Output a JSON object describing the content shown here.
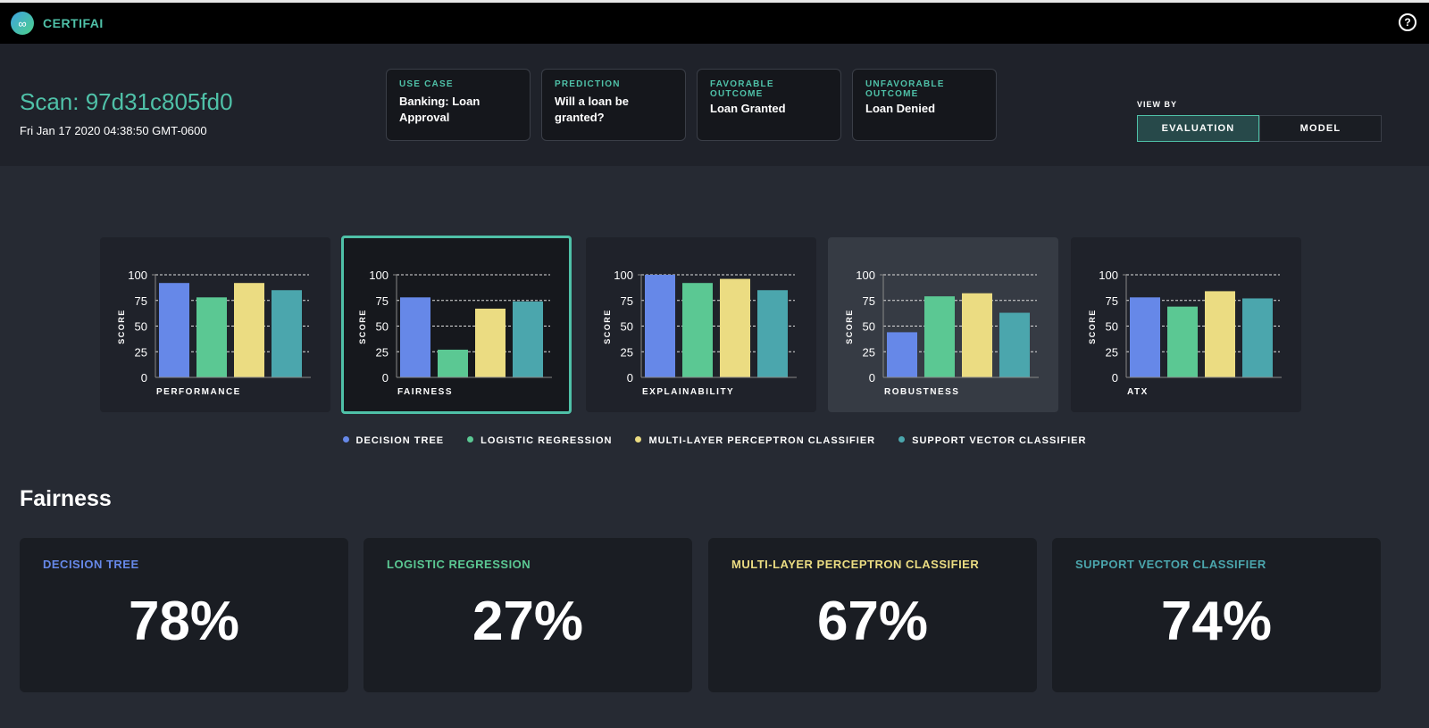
{
  "app": {
    "brand": "CERTIFAI",
    "logo_icon": "cloud-logo-icon",
    "help_icon": "?"
  },
  "scan": {
    "title": "Scan: 97d31c805fd0",
    "date": "Fri Jan 17 2020 04:38:50 GMT-0600"
  },
  "info": [
    {
      "label": "USE CASE",
      "value": "Banking: Loan Approval"
    },
    {
      "label": "PREDICTION",
      "value": "Will a loan be granted?"
    },
    {
      "label": "FAVORABLE OUTCOME",
      "value": "Loan Granted"
    },
    {
      "label": "UNFAVORABLE OUTCOME",
      "value": "Loan Denied"
    }
  ],
  "view_by": {
    "label": "VIEW BY",
    "options": [
      "EVALUATION",
      "MODEL"
    ],
    "selected": "EVALUATION"
  },
  "colors": {
    "accent": "#4fc1a8",
    "series": [
      "#6688e8",
      "#5bc893",
      "#ebdc82",
      "#4ba6ad"
    ]
  },
  "chart_data": [
    {
      "type": "bar",
      "title": "PERFORMANCE",
      "ylabel": "SCORE",
      "ylim": [
        0,
        100
      ],
      "ticks": [
        "0",
        "25",
        "50",
        "75",
        "100"
      ],
      "categories": [
        "Decision Tree",
        "Logistic Regression",
        "Multi-Layer Perceptron Classifier",
        "Support Vector Classifier"
      ],
      "values": [
        92,
        78,
        92,
        85
      ],
      "grid": true
    },
    {
      "type": "bar",
      "title": "FAIRNESS",
      "ylabel": "SCORE",
      "ylim": [
        0,
        100
      ],
      "ticks": [
        "0",
        "25",
        "50",
        "75",
        "100"
      ],
      "categories": [
        "Decision Tree",
        "Logistic Regression",
        "Multi-Layer Perceptron Classifier",
        "Support Vector Classifier"
      ],
      "values": [
        78,
        27,
        67,
        74
      ],
      "grid": true,
      "selected": true
    },
    {
      "type": "bar",
      "title": "EXPLAINABILITY",
      "ylabel": "SCORE",
      "ylim": [
        0,
        100
      ],
      "ticks": [
        "0",
        "25",
        "50",
        "75",
        "100"
      ],
      "categories": [
        "Decision Tree",
        "Logistic Regression",
        "Multi-Layer Perceptron Classifier",
        "Support Vector Classifier"
      ],
      "values": [
        100,
        92,
        96,
        85
      ],
      "grid": true
    },
    {
      "type": "bar",
      "title": "ROBUSTNESS",
      "ylabel": "SCORE",
      "ylim": [
        0,
        100
      ],
      "ticks": [
        "0",
        "25",
        "50",
        "75",
        "100"
      ],
      "categories": [
        "Decision Tree",
        "Logistic Regression",
        "Multi-Layer Perceptron Classifier",
        "Support Vector Classifier"
      ],
      "values": [
        44,
        79,
        82,
        63
      ],
      "grid": true
    },
    {
      "type": "bar",
      "title": "ATX",
      "ylabel": "SCORE",
      "ylim": [
        0,
        100
      ],
      "ticks": [
        "0",
        "25",
        "50",
        "75",
        "100"
      ],
      "categories": [
        "Decision Tree",
        "Logistic Regression",
        "Multi-Layer Perceptron Classifier",
        "Support Vector Classifier"
      ],
      "values": [
        78,
        69,
        84,
        77
      ],
      "grid": true
    }
  ],
  "legend": [
    "DECISION TREE",
    "LOGISTIC REGRESSION",
    "MULTI-LAYER PERCEPTRON CLASSIFIER",
    "SUPPORT VECTOR CLASSIFIER"
  ],
  "section": {
    "title": "Fairness",
    "cards": [
      {
        "name": "DECISION TREE",
        "value": "78%"
      },
      {
        "name": "LOGISTIC REGRESSION",
        "value": "27%"
      },
      {
        "name": "MULTI-LAYER PERCEPTRON CLASSIFIER",
        "value": "67%"
      },
      {
        "name": "SUPPORT VECTOR CLASSIFIER",
        "value": "74%"
      }
    ]
  }
}
